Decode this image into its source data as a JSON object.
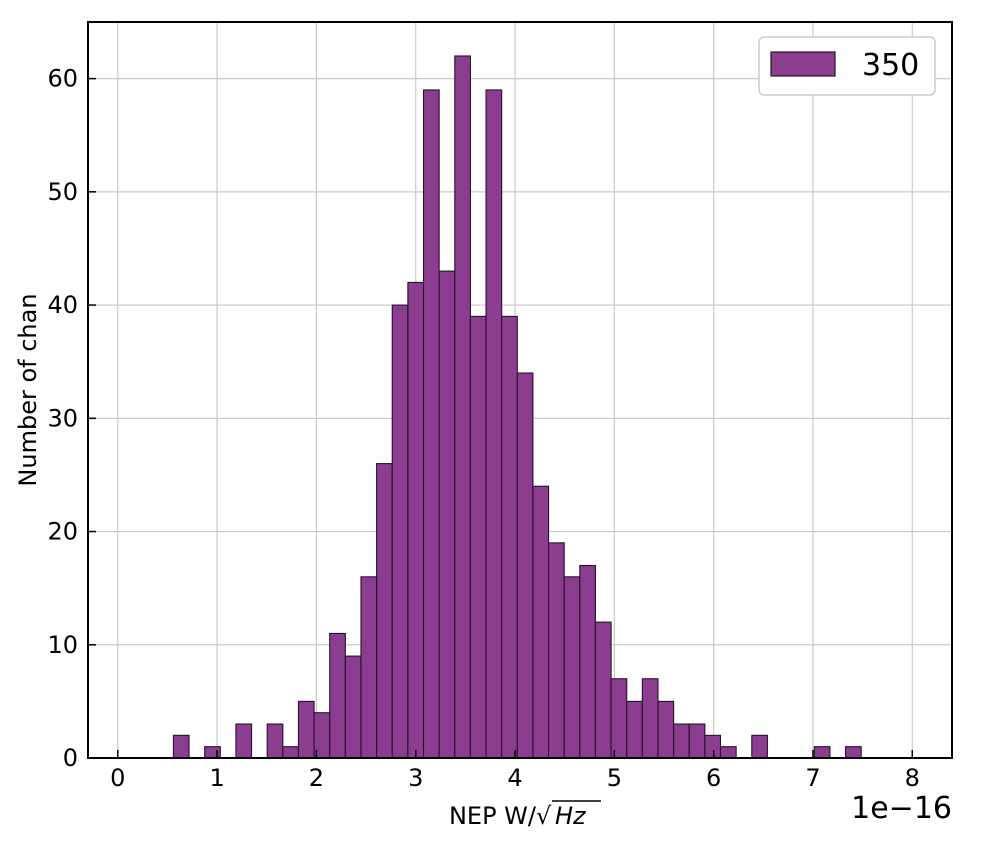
{
  "chart_data": {
    "type": "bar",
    "title": "",
    "xlabel": "NEP W/",
    "xlabel_sqrt": "Hz",
    "ylabel": "Number of chan",
    "x_offset_label": "1e−16",
    "xlim": [
      -0.3,
      8.4
    ],
    "ylim": [
      0,
      65
    ],
    "xticks": [
      0,
      1,
      2,
      3,
      4,
      5,
      6,
      7,
      8
    ],
    "xtick_labels": [
      "0",
      "1",
      "2",
      "3",
      "4",
      "5",
      "6",
      "7",
      "8"
    ],
    "yticks": [
      0,
      10,
      20,
      30,
      40,
      50,
      60
    ],
    "ytick_labels": [
      "0",
      "10",
      "20",
      "30",
      "40",
      "50",
      "60"
    ],
    "grid": true,
    "legend_position": "top-right",
    "series": [
      {
        "name": "350",
        "color": "#8b3d8f",
        "edge_color": "#2a0f2d",
        "bin_start": 0.56,
        "bin_width": 0.1574,
        "values": [
          2,
          0,
          1,
          0,
          3,
          0,
          3,
          1,
          5,
          4,
          11,
          9,
          16,
          26,
          40,
          42,
          59,
          43,
          62,
          39,
          59,
          39,
          34,
          24,
          19,
          16,
          17,
          12,
          7,
          5,
          7,
          5,
          3,
          3,
          2,
          1,
          0,
          2,
          0,
          0,
          0,
          1,
          0,
          1
        ]
      }
    ]
  }
}
